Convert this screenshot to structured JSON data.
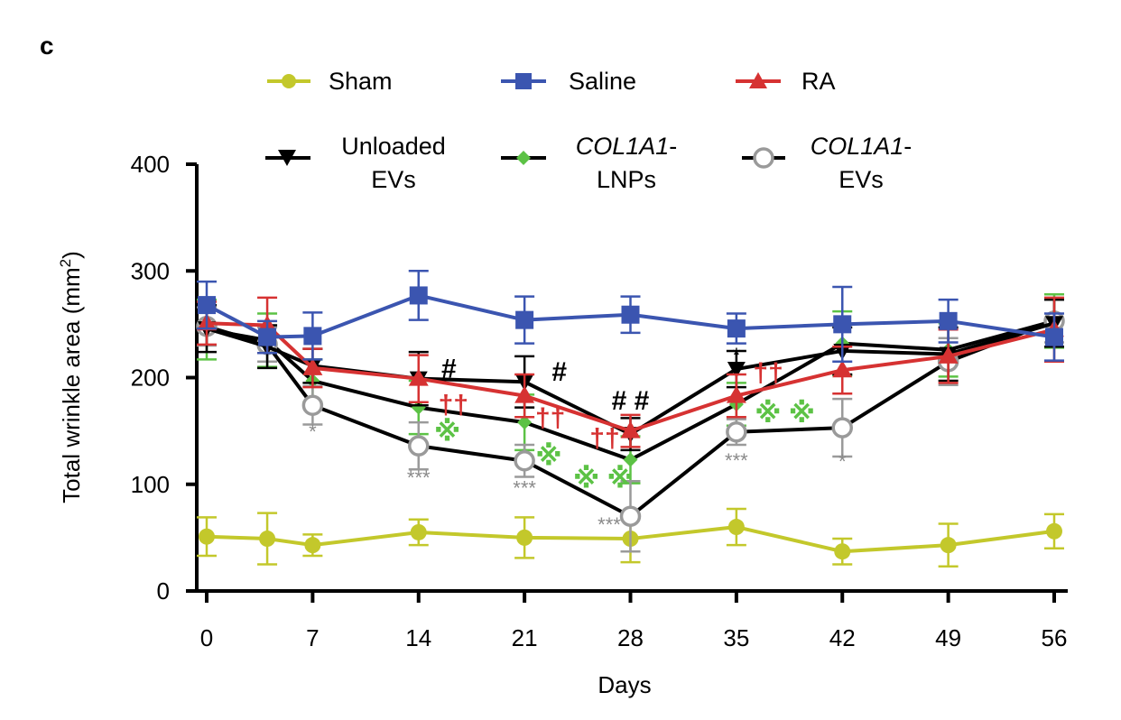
{
  "panel_label": "c",
  "chart_data": {
    "type": "line",
    "title": "",
    "xlabel": "Days",
    "ylabel": "Total wrinkle area (mm",
    "ylabel_superscript": "2",
    "ylabel_close": ")",
    "xlim": [
      0,
      56
    ],
    "ylim": [
      0,
      400
    ],
    "x_ticks": [
      0,
      7,
      14,
      21,
      28,
      35,
      42,
      49,
      56
    ],
    "y_ticks": [
      0,
      100,
      200,
      300,
      400
    ],
    "x": [
      0,
      4,
      7,
      14,
      21,
      28,
      35,
      42,
      49,
      56
    ],
    "grid": false,
    "legend": "top",
    "series": [
      {
        "name": "Sham",
        "name_line1": "Sham",
        "name_line2": "",
        "italic": "",
        "color": "#c3c82b",
        "marker": "circle",
        "values": [
          51,
          49,
          43,
          55,
          50,
          49,
          60,
          37,
          43,
          56
        ],
        "errors": [
          18,
          24,
          10,
          12,
          19,
          22,
          17,
          12,
          20,
          16
        ]
      },
      {
        "name": "Saline",
        "name_line1": "Saline",
        "name_line2": "",
        "italic": "",
        "color": "#3b55b0",
        "marker": "square",
        "values": [
          268,
          238,
          239,
          277,
          254,
          259,
          246,
          250,
          253,
          238
        ],
        "errors": [
          22,
          15,
          22,
          23,
          22,
          17,
          14,
          35,
          20,
          22
        ]
      },
      {
        "name": "RA",
        "name_line1": "RA",
        "name_line2": "",
        "italic": "",
        "color": "#d63232",
        "marker": "triangle",
        "values": [
          251,
          249,
          209,
          199,
          183,
          150,
          183,
          207,
          220,
          245
        ],
        "errors": [
          20,
          26,
          18,
          22,
          20,
          15,
          20,
          22,
          25,
          30
        ]
      },
      {
        "name": "Unloaded EVs",
        "name_line1": "Unloaded",
        "name_line2": "EVs",
        "italic": "",
        "color": "#000000",
        "marker": "triangle-down",
        "values": [
          246,
          229,
          211,
          199,
          196,
          147,
          208,
          225,
          222,
          251
        ],
        "errors": [
          22,
          20,
          16,
          25,
          24,
          15,
          17,
          22,
          25,
          22
        ]
      },
      {
        "name": "COL1A1-LNPs",
        "name_line1": "-",
        "name_line2": "LNPs",
        "italic": "COL1A1",
        "color": "#5cc245",
        "marker": "diamond",
        "values": [
          245,
          235,
          197,
          172,
          158,
          123,
          175,
          232,
          226,
          253
        ],
        "errors": [
          28,
          25,
          20,
          25,
          26,
          22,
          20,
          30,
          25,
          25
        ]
      },
      {
        "name": "COL1A1-EVs",
        "name_line1": "-",
        "name_line2": "EVs",
        "italic": "COL1A1",
        "color": "#9a9a9a",
        "marker": "circle-open",
        "values": [
          248,
          231,
          174,
          136,
          122,
          70,
          149,
          153,
          215,
          253
        ],
        "errors": [
          18,
          16,
          18,
          22,
          15,
          33,
          12,
          27,
          22,
          20
        ]
      }
    ],
    "annotations": [
      {
        "text": "*",
        "x": 7,
        "y": 143,
        "color": "#8a8a8a",
        "size": "small"
      },
      {
        "text": "***",
        "x": 14,
        "y": 100,
        "color": "#8a8a8a",
        "size": "small"
      },
      {
        "text": "***",
        "x": 21,
        "y": 90,
        "color": "#8a8a8a",
        "size": "small"
      },
      {
        "text": "***",
        "x": 26.6,
        "y": 56,
        "color": "#8a8a8a",
        "size": "small"
      },
      {
        "text": "***",
        "x": 35,
        "y": 116,
        "color": "#8a8a8a",
        "size": "small"
      },
      {
        "text": "*",
        "x": 42,
        "y": 115,
        "color": "#8a8a8a",
        "size": "small"
      },
      {
        "text": "*",
        "x": 35,
        "y": 215,
        "color": "#000000",
        "size": "small"
      },
      {
        "text": "#",
        "x": 16,
        "y": 200,
        "color": "#000000",
        "size": "large"
      },
      {
        "text": "#",
        "x": 23.3,
        "y": 197,
        "color": "#000000",
        "size": "large"
      },
      {
        "text": "# #",
        "x": 28,
        "y": 170,
        "color": "#000000",
        "size": "large"
      },
      {
        "text": "††",
        "x": 16.3,
        "y": 166,
        "color": "#d63232",
        "size": "large"
      },
      {
        "text": "††",
        "x": 22.7,
        "y": 154,
        "color": "#d63232",
        "size": "large"
      },
      {
        "text": "††",
        "x": 26.3,
        "y": 135,
        "color": "#d63232",
        "size": "large"
      },
      {
        "text": "††",
        "x": 37.1,
        "y": 196,
        "color": "#d63232",
        "size": "large"
      },
      {
        "text": "※",
        "x": 15.9,
        "y": 141,
        "color": "#5cc245",
        "size": "large"
      },
      {
        "text": "※",
        "x": 22.6,
        "y": 118,
        "color": "#5cc245",
        "size": "large"
      },
      {
        "text": "※ ※",
        "x": 26.2,
        "y": 97,
        "color": "#5cc245",
        "size": "large"
      },
      {
        "text": "※ ※",
        "x": 38.2,
        "y": 158,
        "color": "#5cc245",
        "size": "large"
      }
    ]
  }
}
